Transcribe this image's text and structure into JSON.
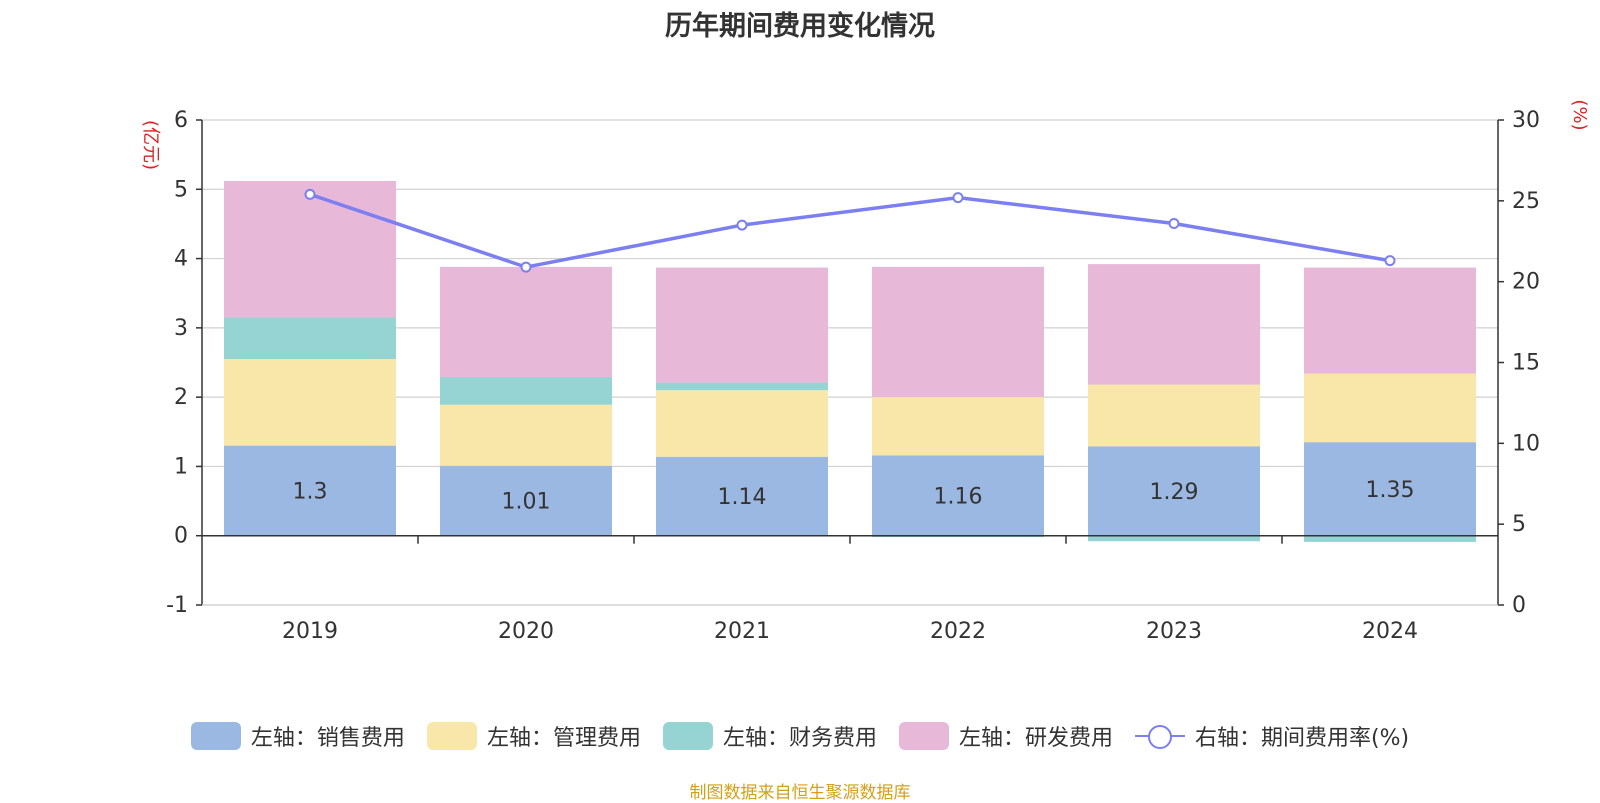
{
  "title": "历年期间费用变化情况",
  "source": "制图数据来自恒生聚源数据库",
  "left_axis_unit": "(亿元)",
  "right_axis_unit": "(%)",
  "chart_data": {
    "type": "bar",
    "stacked": true,
    "title": "历年期间费用变化情况",
    "categories": [
      "2019",
      "2020",
      "2021",
      "2022",
      "2023",
      "2024"
    ],
    "y_left": {
      "unit": "(亿元)",
      "ylim": [
        -1,
        6
      ],
      "ticks": [
        -1,
        0,
        1,
        2,
        3,
        4,
        5,
        6
      ]
    },
    "y_right": {
      "unit": "(%)",
      "ylim": [
        0,
        30
      ],
      "ticks": [
        0,
        5,
        10,
        15,
        20,
        25,
        30
      ]
    },
    "grid": true,
    "legend_position": "bottom",
    "series": [
      {
        "name": "左轴：销售费用",
        "type": "bar",
        "axis": "left",
        "color": "#9bb8e3",
        "values": [
          1.3,
          1.01,
          1.14,
          1.16,
          1.29,
          1.35
        ],
        "data_labels": [
          "1.3",
          "1.01",
          "1.14",
          "1.16",
          "1.29",
          "1.35"
        ]
      },
      {
        "name": "左轴：管理费用",
        "type": "bar",
        "axis": "left",
        "color": "#f8e7a8",
        "values": [
          1.25,
          0.88,
          0.96,
          0.84,
          0.89,
          0.99
        ]
      },
      {
        "name": "左轴：财务费用",
        "type": "bar",
        "axis": "left",
        "color": "#96d4d4",
        "values": [
          0.6,
          0.4,
          0.11,
          -0.02,
          -0.08,
          -0.09
        ]
      },
      {
        "name": "左轴：研发费用",
        "type": "bar",
        "axis": "left",
        "color": "#e8b8d9",
        "values": [
          1.97,
          1.59,
          1.66,
          1.88,
          1.74,
          1.53
        ]
      },
      {
        "name": "右轴：期间费用率(%)",
        "type": "line",
        "axis": "right",
        "color": "#7b7ff0",
        "values": [
          25.4,
          20.9,
          23.5,
          25.2,
          23.6,
          21.3
        ]
      }
    ]
  }
}
